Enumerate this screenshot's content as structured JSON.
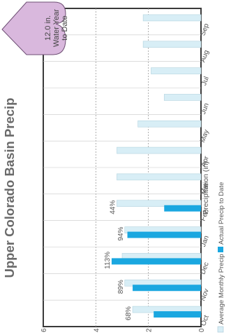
{
  "chart_data": {
    "type": "bar",
    "orientation": "rotated",
    "title": "Upper Colorado Basin Precip",
    "ylabel": "Precipitation (in)",
    "xlabel": "",
    "categories": [
      "Oct",
      "Nov",
      "Dec",
      "Jan",
      "Feb",
      "Mar",
      "Apr",
      "May",
      "Jun",
      "Jul",
      "Aug",
      "Sep"
    ],
    "series": [
      {
        "name": "Average Monthly Precip",
        "color": "#d8eef6",
        "values": [
          2.6,
          2.9,
          3.0,
          2.9,
          3.2,
          3.2,
          3.2,
          2.4,
          1.4,
          1.9,
          2.2,
          2.2
        ]
      },
      {
        "name": "Actual Precip to Date",
        "color": "#1aa7e0",
        "values": [
          1.8,
          2.6,
          3.4,
          2.8,
          1.4,
          null,
          null,
          null,
          null,
          null,
          null,
          null
        ]
      }
    ],
    "data_labels": [
      "68%",
      "89%",
      "113%",
      "94%",
      "44%"
    ],
    "ylim": [
      0,
      6
    ],
    "yticks": [
      "0",
      "2",
      "4",
      "6"
    ],
    "grid": true,
    "legend_position": "bottom",
    "badge": {
      "line1": "12.0 in.",
      "line2": "Water Year",
      "line3": "to Date",
      "color": "#d9b8dd"
    }
  }
}
